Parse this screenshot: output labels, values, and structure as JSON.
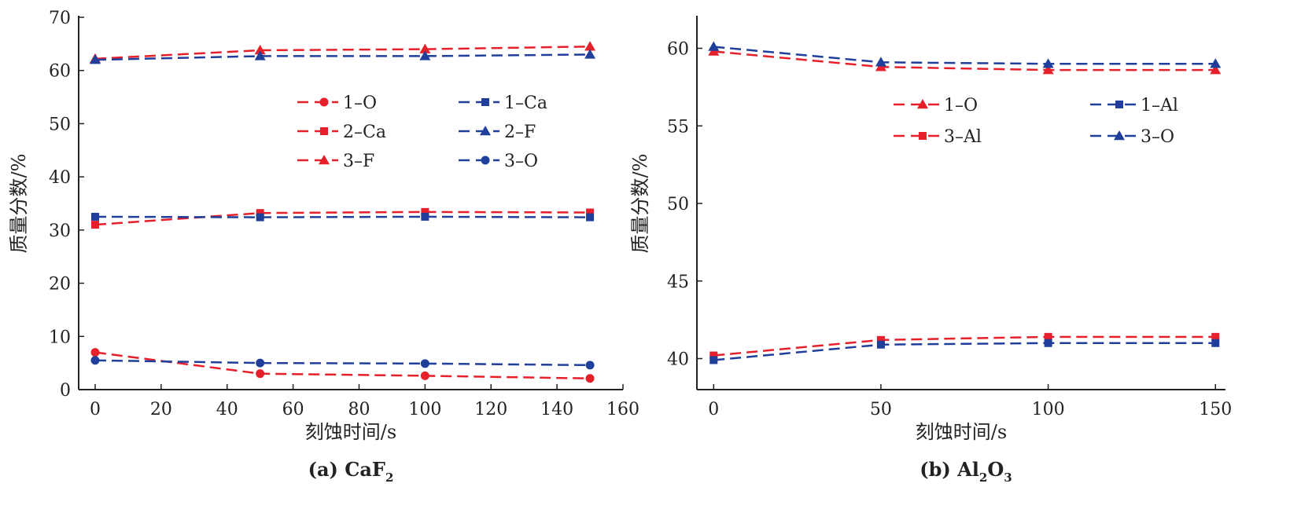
{
  "colors": {
    "red": "#e5202b",
    "blue": "#1f3f9a",
    "axis": "#222222"
  },
  "chart_data": [
    {
      "id": "a",
      "type": "line",
      "title": "(a) CaF2",
      "caption_prefix": "(a) ",
      "caption_main": "CaF",
      "caption_sub": "2",
      "caption_tail": "",
      "xlabel": "刻蚀时间/s",
      "ylabel": "质量分数/%",
      "xlim": [
        -5,
        160
      ],
      "ylim": [
        0,
        70
      ],
      "xticks": [
        0,
        20,
        40,
        60,
        80,
        100,
        120,
        140,
        160
      ],
      "yticks": [
        0,
        10,
        20,
        30,
        40,
        50,
        60,
        70
      ],
      "legend_columns": 2,
      "legend_position": "upper-middle",
      "series": [
        {
          "name": "1–O",
          "color": "red",
          "marker": "circle",
          "x": [
            0,
            50,
            100,
            150
          ],
          "values": [
            7.0,
            3.0,
            2.6,
            2.1
          ]
        },
        {
          "name": "2–Ca",
          "color": "red",
          "marker": "square",
          "x": [
            0,
            50,
            100,
            150
          ],
          "values": [
            31.0,
            33.2,
            33.4,
            33.3
          ]
        },
        {
          "name": "3–F",
          "color": "red",
          "marker": "triangle",
          "x": [
            0,
            50,
            100,
            150
          ],
          "values": [
            62.2,
            63.8,
            64.0,
            64.5
          ]
        },
        {
          "name": "1–Ca",
          "color": "blue",
          "marker": "square",
          "x": [
            0,
            50,
            100,
            150
          ],
          "values": [
            32.5,
            32.4,
            32.5,
            32.4
          ]
        },
        {
          "name": "2–F",
          "color": "blue",
          "marker": "triangle",
          "x": [
            0,
            50,
            100,
            150
          ],
          "values": [
            62.0,
            62.7,
            62.7,
            63.0
          ]
        },
        {
          "name": "3–O",
          "color": "blue",
          "marker": "circle",
          "x": [
            0,
            50,
            100,
            150
          ],
          "values": [
            5.5,
            5.0,
            4.9,
            4.6
          ]
        }
      ]
    },
    {
      "id": "b",
      "type": "line",
      "title": "(b) Al2O3",
      "caption_prefix": "(b) ",
      "caption_main": "Al",
      "caption_sub": "2",
      "caption_tail": "O",
      "caption_sub2": "3",
      "xlabel": "刻蚀时间/s",
      "ylabel": "质量分数/%",
      "xlim": [
        -5,
        153
      ],
      "ylim": [
        38,
        62
      ],
      "xticks": [
        0,
        50,
        100,
        150
      ],
      "yticks": [
        40,
        45,
        50,
        55,
        60
      ],
      "legend_columns": 2,
      "legend_position": "upper-middle",
      "series": [
        {
          "name": "1–O",
          "color": "red",
          "marker": "triangle",
          "x": [
            0,
            50,
            100,
            150
          ],
          "values": [
            59.8,
            58.8,
            58.6,
            58.6
          ]
        },
        {
          "name": "3–Al",
          "color": "red",
          "marker": "square",
          "x": [
            0,
            50,
            100,
            150
          ],
          "values": [
            40.2,
            41.2,
            41.4,
            41.4
          ]
        },
        {
          "name": "1–Al",
          "color": "blue",
          "marker": "square",
          "x": [
            0,
            50,
            100,
            150
          ],
          "values": [
            39.9,
            40.9,
            41.0,
            41.0
          ]
        },
        {
          "name": "3–O",
          "color": "blue",
          "marker": "triangle",
          "x": [
            0,
            50,
            100,
            150
          ],
          "values": [
            60.1,
            59.1,
            59.0,
            59.0
          ]
        }
      ]
    }
  ]
}
